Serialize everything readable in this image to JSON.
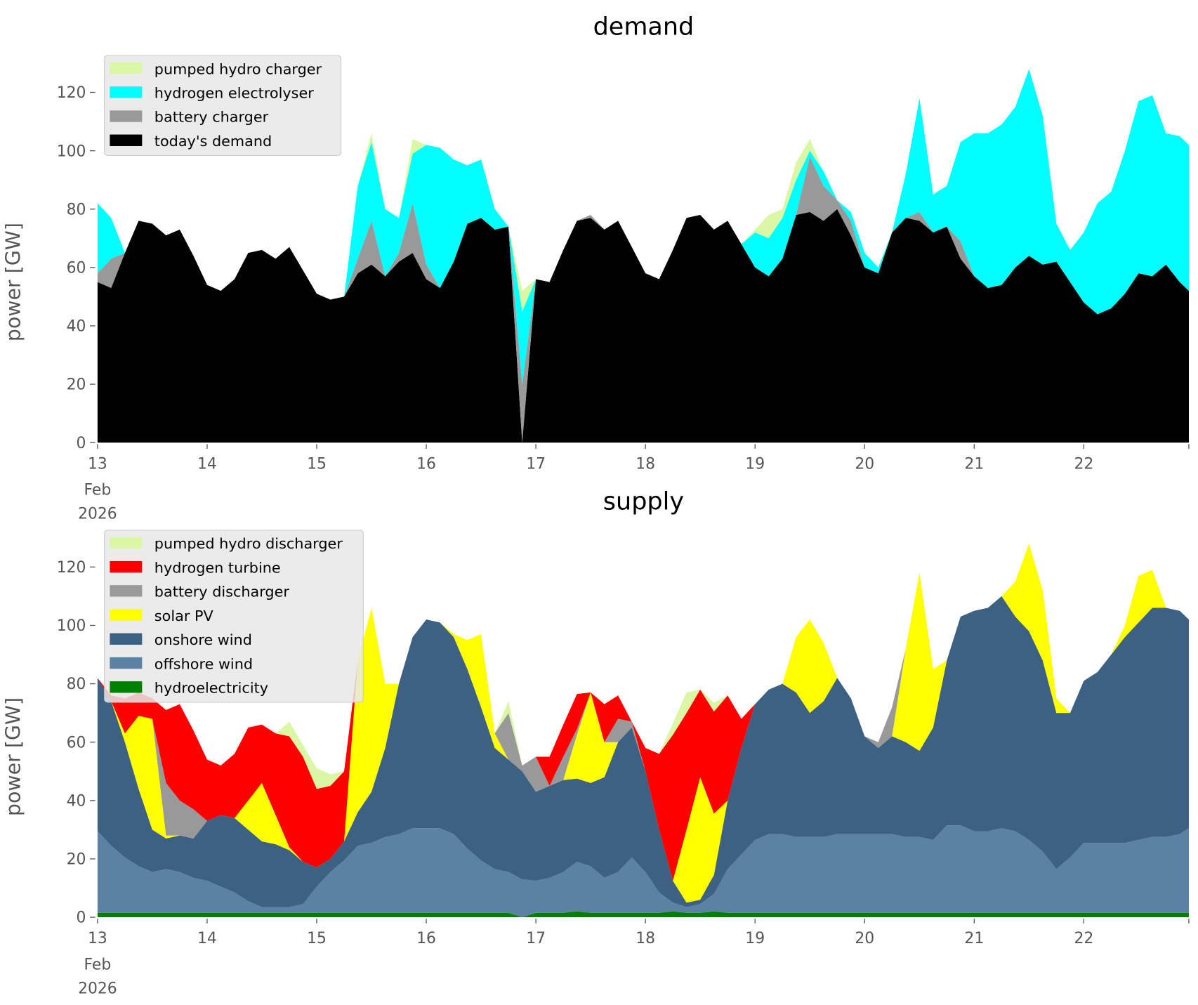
{
  "chart_data": [
    {
      "type": "area",
      "stacked": true,
      "title": "demand",
      "ylabel": "power [GW]",
      "ylim": [
        0,
        132
      ],
      "y_ticks": [
        "0",
        "20",
        "40",
        "60",
        "80",
        "100",
        "120"
      ],
      "x_ticks": [
        "13",
        "14",
        "15",
        "16",
        "17",
        "18",
        "19",
        "20",
        "21",
        "22"
      ],
      "x_tick_sub": [
        "Feb",
        "2026"
      ],
      "xlim": [
        "2026-02-13T00:00",
        "2026-02-22T23:00"
      ],
      "grid": false,
      "legend_placement": "top-left",
      "legend_order": [
        "pumped hydro charger",
        "hydrogen electrolyser",
        "battery charger",
        "today's demand"
      ],
      "series": [
        {
          "name": "today's demand",
          "color": "#000000",
          "values": [
            55,
            53,
            65,
            76,
            75,
            71,
            73,
            64,
            54,
            52,
            56,
            65,
            66,
            63,
            67,
            59,
            51,
            49,
            50,
            58,
            61,
            57,
            62,
            65,
            56,
            53,
            62,
            75,
            77,
            73,
            74,
            0,
            56,
            55,
            66,
            76,
            77,
            73,
            76,
            67,
            58,
            56,
            66,
            77,
            78,
            73,
            76,
            68,
            60,
            57,
            63,
            78,
            79,
            76,
            80,
            71,
            60,
            58,
            72,
            77,
            76,
            72,
            74,
            63,
            57,
            53,
            54,
            60,
            64,
            61,
            62,
            55,
            48,
            44,
            46,
            51,
            58,
            57,
            61,
            55,
            52
          ]
        },
        {
          "name": "battery charger",
          "color": "#999999",
          "values": [
            3,
            10,
            0,
            0,
            0,
            0,
            0,
            0,
            0,
            0,
            0,
            0,
            0,
            0,
            0,
            0,
            0,
            0,
            0,
            5,
            15,
            0,
            3,
            17,
            5,
            0,
            0,
            0,
            0,
            0,
            0,
            20,
            0,
            0,
            0,
            0,
            1,
            0,
            0,
            0,
            0,
            0,
            0,
            0,
            0,
            0,
            0,
            0,
            0,
            0,
            0,
            0,
            19,
            12,
            3,
            5,
            0,
            0,
            0,
            0,
            3,
            0,
            0,
            6,
            0,
            0,
            0,
            0,
            0,
            0,
            0,
            0,
            0,
            0,
            0,
            0,
            0,
            0,
            0,
            0,
            0
          ]
        },
        {
          "name": "hydrogen electrolyser",
          "color": "#00ffff",
          "values": [
            24,
            14,
            0,
            0,
            0,
            0,
            0,
            0,
            0,
            0,
            0,
            0,
            0,
            0,
            0,
            0,
            0,
            0,
            0,
            25,
            27,
            23,
            12,
            17,
            41,
            48,
            35,
            20,
            20,
            7,
            0,
            25,
            0,
            0,
            0,
            0,
            0,
            0,
            0,
            0,
            0,
            0,
            0,
            0,
            0,
            0,
            0,
            0,
            12,
            13,
            14,
            12,
            2,
            5,
            0,
            3,
            5,
            2,
            0,
            15,
            39,
            13,
            14,
            34,
            49,
            53,
            55,
            55,
            64,
            51,
            13,
            11,
            24,
            38,
            40,
            49,
            59,
            62,
            45,
            50,
            50
          ]
        },
        {
          "name": "pumped hydro charger",
          "color": "#d9f7a5",
          "values": [
            0,
            0,
            0,
            0,
            0,
            0,
            0,
            0,
            0,
            0,
            0,
            0,
            0,
            0,
            0,
            0,
            0,
            0,
            0,
            0,
            3,
            0,
            0,
            5,
            0,
            0,
            0,
            0,
            0,
            0,
            0,
            7,
            0,
            0,
            0,
            0,
            0,
            0,
            0,
            0,
            0,
            0,
            0,
            0,
            0,
            0,
            0,
            0,
            1,
            8,
            3,
            6,
            4,
            0,
            0,
            0,
            0,
            0,
            0,
            0,
            0,
            0,
            0,
            0,
            0,
            0,
            0,
            0,
            0,
            0,
            0,
            0,
            0,
            0,
            0,
            0,
            0,
            0,
            0,
            0,
            0
          ]
        }
      ]
    },
    {
      "type": "area",
      "stacked": true,
      "title": "supply",
      "ylabel": "power [GW]",
      "ylim": [
        0,
        132
      ],
      "y_ticks": [
        "0",
        "20",
        "40",
        "60",
        "80",
        "100",
        "120"
      ],
      "x_ticks": [
        "13",
        "14",
        "15",
        "16",
        "17",
        "18",
        "19",
        "20",
        "21",
        "22"
      ],
      "x_tick_sub": [
        "Feb",
        "2026"
      ],
      "xlim": [
        "2026-02-13T00:00",
        "2026-02-22T23:00"
      ],
      "grid": false,
      "legend_placement": "top-left",
      "legend_order": [
        "pumped hydro discharger",
        "hydrogen turbine",
        "battery discharger",
        "solar PV",
        "onshore wind",
        "offshore wind",
        "hydroelectricity"
      ],
      "series": [
        {
          "name": "hydroelectricity",
          "color": "#008000",
          "values": [
            1.5,
            1.5,
            1.5,
            1.5,
            1.5,
            1.5,
            1.5,
            1.5,
            1.5,
            1.5,
            1.5,
            1.5,
            1.5,
            1.5,
            1.5,
            1.5,
            1.5,
            1.5,
            1.5,
            1.5,
            1.5,
            1.5,
            1.5,
            1.5,
            1.5,
            1.5,
            1.5,
            1.5,
            1.5,
            1.5,
            1.5,
            0,
            1.5,
            1.5,
            1.5,
            2,
            1.5,
            1.5,
            1.5,
            1.5,
            1.5,
            1.5,
            2,
            1.5,
            1.5,
            2,
            1.5,
            1.5,
            1.5,
            1.5,
            1.5,
            1.5,
            1.5,
            1.5,
            1.5,
            1.5,
            1.5,
            1.5,
            1.5,
            1.5,
            1.5,
            1.5,
            1.5,
            1.5,
            1.5,
            1.5,
            1.5,
            1.5,
            1.5,
            1.5,
            1.5,
            1.5,
            1.5,
            1.5,
            1.5,
            1.5,
            1.5,
            1.5,
            1.5,
            1.5,
            1.5
          ]
        },
        {
          "name": "offshore wind",
          "color": "#5b82a3",
          "values": [
            28,
            23,
            19,
            16,
            14,
            15,
            14,
            12,
            11,
            9,
            7,
            4,
            2,
            2,
            2,
            3,
            9,
            14,
            18,
            23,
            24,
            26,
            27,
            29,
            29,
            29,
            27,
            22,
            18,
            15,
            14,
            13,
            11,
            12,
            14,
            17,
            16,
            12,
            14,
            19,
            14,
            7,
            3,
            2,
            3,
            6,
            15,
            20,
            25,
            27,
            27,
            26,
            26,
            26,
            27,
            27,
            27,
            27,
            27,
            26,
            26,
            25,
            30,
            30,
            28,
            28,
            29,
            28,
            25,
            21,
            15,
            19,
            24,
            24,
            24,
            24,
            25,
            26,
            26,
            27,
            29
          ]
        },
        {
          "name": "onshore wind",
          "color": "#3c6182",
          "values": [
            52.5,
            49.5,
            39.5,
            26.5,
            14.5,
            10.5,
            12.5,
            13.5,
            20.5,
            24.5,
            25.5,
            24.5,
            22.5,
            21.5,
            19.5,
            14.5,
            6.5,
            4.5,
            6.5,
            11.5,
            17.5,
            30.5,
            51.5,
            65.5,
            71.5,
            70.5,
            67.5,
            61.5,
            52.5,
            41.5,
            38.5,
            37,
            30.5,
            31.5,
            31.5,
            28.5,
            28.5,
            34.5,
            44.5,
            44.5,
            34.5,
            21.5,
            7.5,
            1.5,
            1.5,
            6.5,
            23.5,
            36.5,
            46.5,
            49.5,
            51.5,
            49.5,
            42.5,
            46.5,
            53.5,
            46.5,
            33.5,
            29.5,
            33.5,
            32.5,
            29.5,
            38.5,
            56.5,
            71.5,
            75.5,
            76.5,
            79.5,
            73.5,
            71.5,
            65.5,
            53.5,
            49.5,
            55.5,
            58.5,
            64.5,
            70.5,
            74.5,
            78.5,
            78.5,
            76.5,
            71.5
          ]
        },
        {
          "name": "solar PV",
          "color": "#ffff00",
          "values": [
            0,
            0,
            3,
            25,
            38,
            1,
            0,
            0,
            0,
            0,
            0,
            10,
            20,
            10,
            1,
            0,
            0,
            0,
            0,
            52,
            63,
            22,
            0,
            0,
            0,
            0,
            1,
            10,
            25,
            5,
            0,
            0,
            0,
            0,
            0,
            15,
            31,
            12,
            0,
            0,
            0,
            0,
            0,
            25,
            42,
            21,
            0,
            0,
            0,
            0,
            0,
            19,
            32,
            20,
            0,
            0,
            0,
            0,
            0,
            32,
            61,
            20,
            0,
            0,
            0,
            0,
            0,
            12,
            30,
            24,
            5,
            0,
            0,
            0,
            0,
            4,
            16,
            13,
            0,
            0,
            0
          ]
        },
        {
          "name": "battery discharger",
          "color": "#999999",
          "values": [
            0,
            0,
            0,
            0,
            0,
            18,
            12,
            10,
            0,
            0,
            0,
            0,
            0,
            0,
            0,
            0,
            0,
            0,
            0,
            0,
            0,
            0,
            0,
            0,
            0,
            0,
            0,
            0,
            0,
            0,
            16,
            2,
            12,
            0,
            8,
            2,
            0,
            0,
            8,
            2,
            0,
            0,
            0,
            0,
            0,
            0,
            0,
            0,
            0,
            0,
            0,
            0,
            0,
            0,
            0,
            0,
            0,
            2,
            10,
            0,
            0,
            0,
            0,
            0,
            0,
            0,
            0,
            0,
            0,
            0,
            0,
            0,
            0,
            0,
            0,
            0,
            0,
            0,
            0,
            0,
            0
          ]
        },
        {
          "name": "hydrogen turbine",
          "color": "#ff0000",
          "values": [
            0,
            2,
            12,
            8,
            7,
            25,
            33,
            27,
            21,
            17,
            22,
            25,
            20,
            28,
            38,
            36,
            27,
            25,
            24,
            0,
            0,
            0,
            0,
            0,
            0,
            0,
            0,
            0,
            0,
            0,
            0,
            0,
            0,
            10,
            11,
            12,
            0,
            13,
            8,
            0,
            8,
            26,
            50,
            40,
            30,
            35,
            36,
            10,
            0,
            0,
            0,
            0,
            0,
            0,
            0,
            0,
            0,
            0,
            0,
            0,
            0,
            0,
            0,
            0,
            0,
            0,
            0,
            0,
            0,
            0,
            0,
            0,
            0,
            0,
            0,
            0,
            0,
            0,
            0,
            0,
            0
          ]
        },
        {
          "name": "pumped hydro discharger",
          "color": "#d9f7a5",
          "values": [
            0,
            0,
            0,
            0,
            0,
            0,
            0,
            0,
            0,
            0,
            0,
            0,
            0,
            0,
            5,
            4,
            7,
            4,
            0,
            0,
            0,
            0,
            0,
            0,
            0,
            0,
            0,
            0,
            0,
            0,
            4,
            0,
            0,
            0,
            0,
            0,
            0,
            0,
            0,
            0,
            0,
            0,
            4,
            7,
            0,
            3,
            0,
            0,
            0,
            0,
            0,
            0,
            0,
            0,
            0,
            0,
            0,
            0,
            0,
            0,
            0,
            0,
            0,
            0,
            0,
            0,
            0,
            0,
            0,
            0,
            0,
            0,
            0,
            0,
            0,
            0,
            0,
            0,
            0,
            0,
            0
          ]
        }
      ]
    }
  ],
  "x": [
    "2026-02-13T00:00",
    "2026-02-13T03:00",
    "2026-02-13T06:00",
    "2026-02-13T09:00",
    "2026-02-13T12:00",
    "2026-02-13T15:00",
    "2026-02-13T18:00",
    "2026-02-13T21:00",
    "2026-02-14T00:00",
    "2026-02-14T03:00",
    "2026-02-14T06:00",
    "2026-02-14T09:00",
    "2026-02-14T12:00",
    "2026-02-14T15:00",
    "2026-02-14T18:00",
    "2026-02-14T21:00",
    "2026-02-15T00:00",
    "2026-02-15T03:00",
    "2026-02-15T06:00",
    "2026-02-15T09:00",
    "2026-02-15T12:00",
    "2026-02-15T15:00",
    "2026-02-15T18:00",
    "2026-02-15T21:00",
    "2026-02-16T00:00",
    "2026-02-16T03:00",
    "2026-02-16T06:00",
    "2026-02-16T09:00",
    "2026-02-16T12:00",
    "2026-02-16T15:00",
    "2026-02-16T18:00",
    "2026-02-16T21:00",
    "2026-02-17T00:00",
    "2026-02-17T03:00",
    "2026-02-17T06:00",
    "2026-02-17T09:00",
    "2026-02-17T12:00",
    "2026-02-17T15:00",
    "2026-02-17T18:00",
    "2026-02-17T21:00",
    "2026-02-18T00:00",
    "2026-02-18T03:00",
    "2026-02-18T06:00",
    "2026-02-18T09:00",
    "2026-02-18T12:00",
    "2026-02-18T15:00",
    "2026-02-18T18:00",
    "2026-02-18T21:00",
    "2026-02-19T00:00",
    "2026-02-19T03:00",
    "2026-02-19T06:00",
    "2026-02-19T09:00",
    "2026-02-19T12:00",
    "2026-02-19T15:00",
    "2026-02-19T18:00",
    "2026-02-19T21:00",
    "2026-02-20T00:00",
    "2026-02-20T03:00",
    "2026-02-20T06:00",
    "2026-02-20T09:00",
    "2026-02-20T12:00",
    "2026-02-20T15:00",
    "2026-02-20T18:00",
    "2026-02-20T21:00",
    "2026-02-21T00:00",
    "2026-02-21T03:00",
    "2026-02-21T06:00",
    "2026-02-21T09:00",
    "2026-02-21T12:00",
    "2026-02-21T15:00",
    "2026-02-21T18:00",
    "2026-02-21T21:00",
    "2026-02-22T00:00",
    "2026-02-22T03:00",
    "2026-02-22T06:00",
    "2026-02-22T09:00",
    "2026-02-22T12:00",
    "2026-02-22T15:00",
    "2026-02-22T18:00",
    "2026-02-22T21:00",
    "2026-02-22T23:00"
  ]
}
